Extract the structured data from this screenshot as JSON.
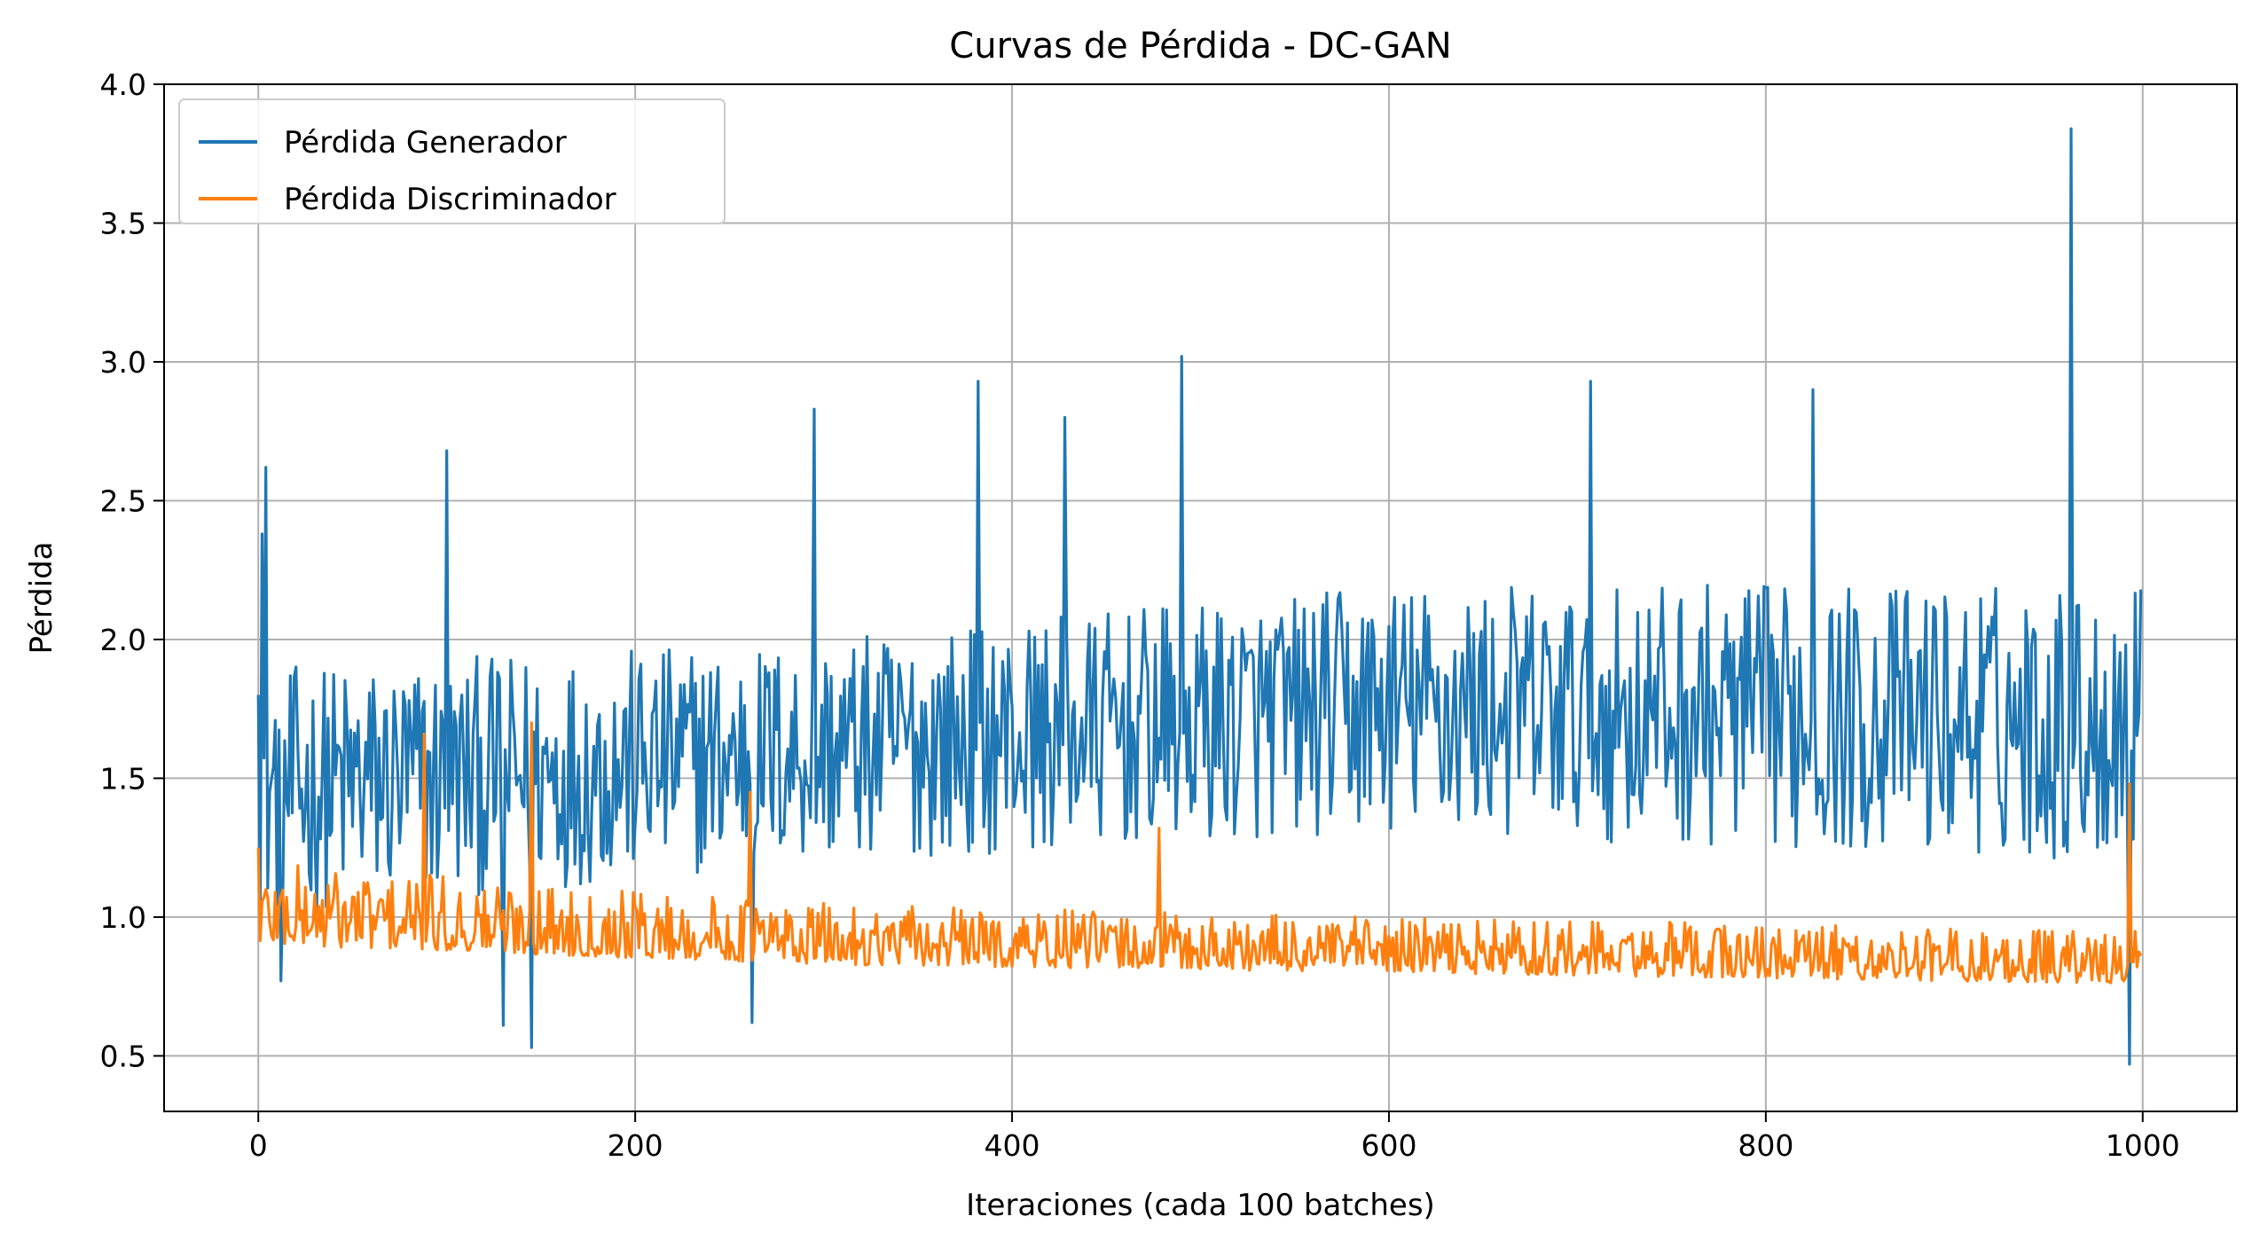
{
  "chart_data": {
    "type": "line",
    "title": "Curvas de Pérdida - DC-GAN",
    "xlabel": "Iteraciones (cada 100 batches)",
    "ylabel": "Pérdida",
    "xlim": [
      -50,
      1050
    ],
    "ylim": [
      0.3,
      4.0
    ],
    "x_ticks": [
      0,
      200,
      400,
      600,
      800,
      1000
    ],
    "y_ticks": [
      0.5,
      1.0,
      1.5,
      2.0,
      2.5,
      3.0,
      3.5,
      4.0
    ],
    "x_tick_labels": [
      "0",
      "200",
      "400",
      "600",
      "800",
      "1000"
    ],
    "y_tick_labels": [
      "0.5",
      "1.0",
      "1.5",
      "2.0",
      "2.5",
      "3.0",
      "3.5",
      "4.0"
    ],
    "grid": true,
    "legend_position": "top-left",
    "x_range": [
      0,
      999
    ],
    "series": [
      {
        "name": "Pérdida Generador",
        "color": "#1f77b4",
        "key_points": [
          [
            0,
            1.8
          ],
          [
            2,
            2.38
          ],
          [
            4,
            2.62
          ],
          [
            12,
            0.77
          ],
          [
            100,
            2.68
          ],
          [
            130,
            0.61
          ],
          [
            145,
            0.53
          ],
          [
            262,
            0.62
          ],
          [
            295,
            2.83
          ],
          [
            382,
            2.93
          ],
          [
            428,
            2.8
          ],
          [
            490,
            3.02
          ],
          [
            707,
            2.93
          ],
          [
            825,
            2.9
          ],
          [
            962,
            3.84
          ],
          [
            993,
            0.47
          ],
          [
            999,
            2.18
          ]
        ],
        "typical_band": [
          [
            0,
            1.0,
            1.9
          ],
          [
            300,
            1.2,
            2.0
          ],
          [
            600,
            1.3,
            2.2
          ],
          [
            999,
            1.2,
            2.2
          ]
        ]
      },
      {
        "name": "Pérdida Discriminador",
        "color": "#ff7f0e",
        "key_points": [
          [
            0,
            1.25
          ],
          [
            88,
            1.66
          ],
          [
            145,
            1.7
          ],
          [
            261,
            1.45
          ],
          [
            478,
            1.32
          ],
          [
            990,
            0.77
          ],
          [
            993,
            1.48
          ],
          [
            999,
            0.86
          ]
        ],
        "typical_band": [
          [
            0,
            0.9,
            1.2
          ],
          [
            300,
            0.83,
            1.05
          ],
          [
            600,
            0.8,
            1.0
          ],
          [
            999,
            0.76,
            0.95
          ]
        ]
      }
    ]
  }
}
